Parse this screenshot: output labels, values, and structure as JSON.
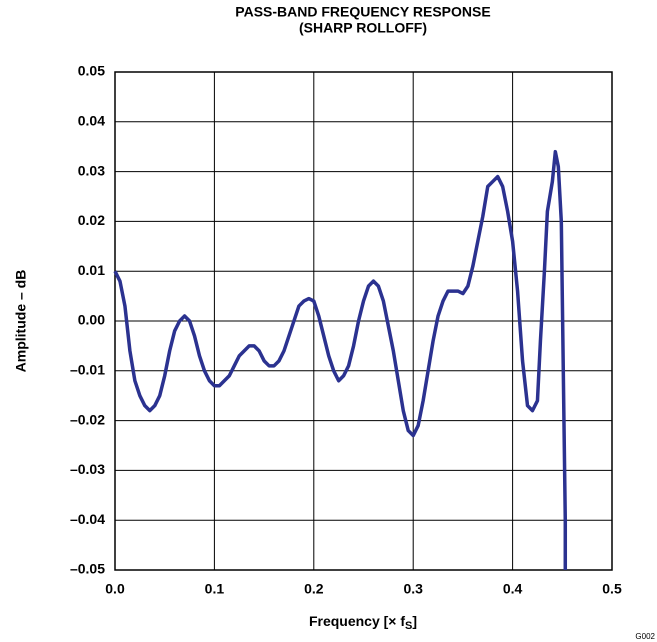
{
  "chart_data": {
    "type": "line",
    "title": "PASS-BAND FREQUENCY RESPONSE",
    "subtitle": "(SHARP ROLLOFF)",
    "y_label": "Amplitude – dB",
    "x_label": "Frequency [× f",
    "x_label_subscript": "S",
    "x_label_end": "]",
    "figure_id": "G002",
    "xlim": [
      0,
      0.5
    ],
    "ylim": [
      -0.05,
      0.05
    ],
    "xticks": [
      {
        "value": 0,
        "label": "0.0"
      },
      0.1,
      0.2,
      0.3,
      0.4,
      0.5
    ],
    "yticks": [
      {
        "value": -0.05,
        "label": "–0.05"
      },
      {
        "value": -0.04,
        "label": "–0.04"
      },
      {
        "value": -0.03,
        "label": "–0.03"
      },
      {
        "value": -0.02,
        "label": "–0.02"
      },
      {
        "value": -0.01,
        "label": "–0.01"
      },
      {
        "value": 0,
        "label": "0.00"
      },
      0.01,
      0.02,
      0.03,
      0.04,
      0.05
    ],
    "grid": true,
    "x": [
      0.0,
      0.005,
      0.01,
      0.015,
      0.02,
      0.025,
      0.03,
      0.035,
      0.04,
      0.045,
      0.05,
      0.055,
      0.06,
      0.065,
      0.07,
      0.075,
      0.08,
      0.085,
      0.09,
      0.095,
      0.1,
      0.105,
      0.11,
      0.115,
      0.12,
      0.125,
      0.13,
      0.135,
      0.14,
      0.145,
      0.15,
      0.155,
      0.16,
      0.165,
      0.17,
      0.175,
      0.18,
      0.185,
      0.19,
      0.195,
      0.2,
      0.205,
      0.21,
      0.215,
      0.22,
      0.225,
      0.23,
      0.235,
      0.24,
      0.245,
      0.25,
      0.255,
      0.26,
      0.265,
      0.27,
      0.275,
      0.28,
      0.285,
      0.29,
      0.295,
      0.3,
      0.305,
      0.31,
      0.315,
      0.32,
      0.325,
      0.33,
      0.335,
      0.34,
      0.345,
      0.35,
      0.355,
      0.36,
      0.365,
      0.37,
      0.375,
      0.38,
      0.385,
      0.39,
      0.395,
      0.4,
      0.405,
      0.41,
      0.415,
      0.42,
      0.425,
      0.428,
      0.432,
      0.435,
      0.44,
      0.443,
      0.446,
      0.449,
      0.451,
      0.453,
      0.453
    ],
    "series": [
      {
        "name": "Amplitude",
        "color": "#2b3290",
        "values": [
          0.01,
          0.008,
          0.003,
          -0.006,
          -0.012,
          -0.015,
          -0.017,
          -0.018,
          -0.017,
          -0.015,
          -0.011,
          -0.006,
          -0.002,
          0.0,
          0.001,
          0.0,
          -0.003,
          -0.007,
          -0.01,
          -0.012,
          -0.013,
          -0.013,
          -0.012,
          -0.011,
          -0.009,
          -0.007,
          -0.006,
          -0.005,
          -0.005,
          -0.006,
          -0.008,
          -0.009,
          -0.009,
          -0.008,
          -0.006,
          -0.003,
          0.0,
          0.003,
          0.004,
          0.0045,
          0.004,
          0.001,
          -0.003,
          -0.007,
          -0.01,
          -0.012,
          -0.011,
          -0.009,
          -0.005,
          0.0,
          0.004,
          0.007,
          0.008,
          0.007,
          0.004,
          -0.001,
          -0.006,
          -0.012,
          -0.018,
          -0.022,
          -0.023,
          -0.021,
          -0.016,
          -0.01,
          -0.004,
          0.001,
          0.004,
          0.006,
          0.006,
          0.006,
          0.0055,
          0.007,
          0.011,
          0.016,
          0.021,
          0.027,
          0.028,
          0.029,
          0.027,
          0.022,
          0.016,
          0.006,
          -0.008,
          -0.017,
          -0.018,
          -0.016,
          -0.004,
          0.01,
          0.022,
          0.028,
          0.034,
          0.031,
          0.02,
          -0.01,
          -0.04,
          -0.05
        ]
      }
    ]
  }
}
